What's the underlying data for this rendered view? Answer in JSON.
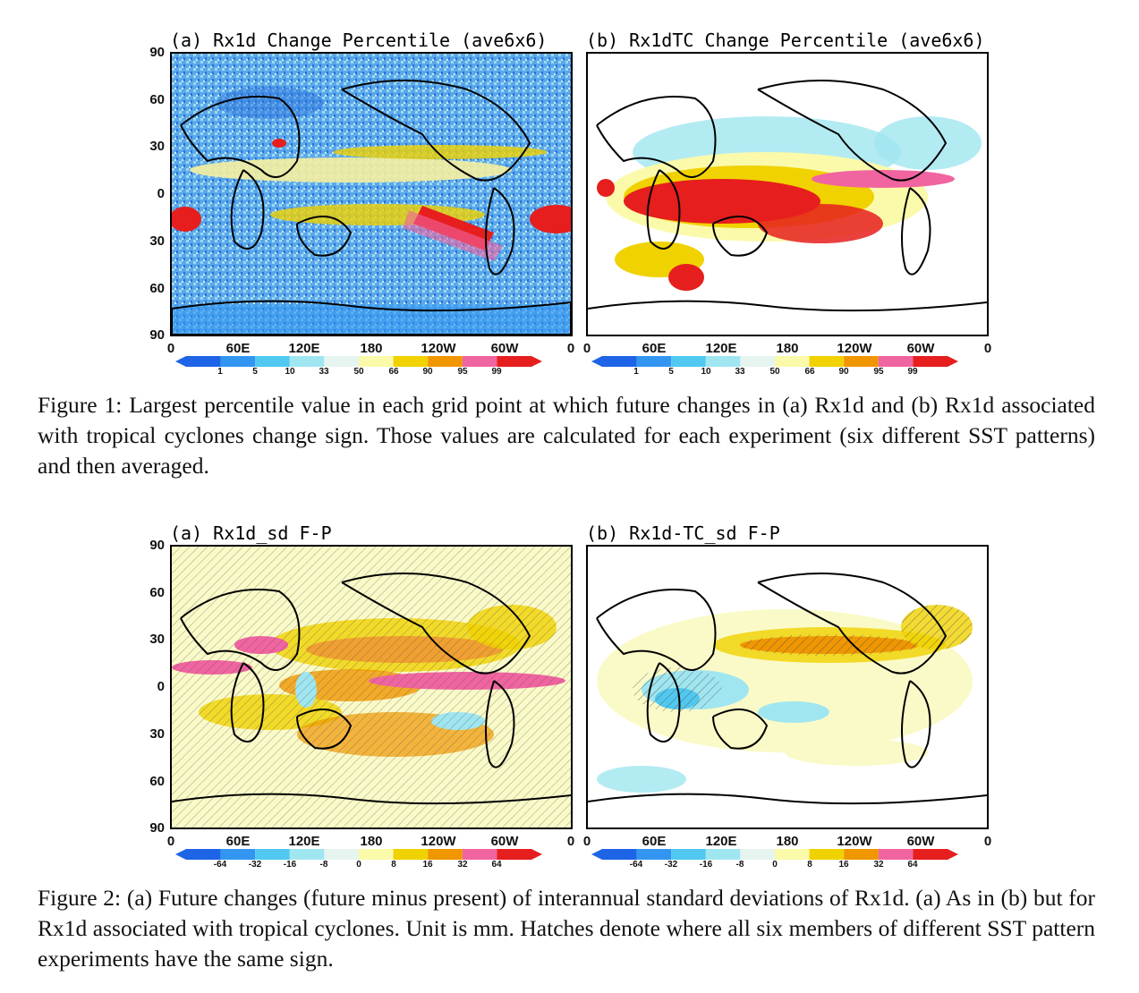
{
  "figure1": {
    "panel_a_title": "(a) Rx1d Change Percentile (ave6x6)",
    "panel_b_title": "(b) Rx1dTC Change Percentile (ave6x6)",
    "colorbar_labels": [
      "1",
      "5",
      "10",
      "33",
      "50",
      "66",
      "90",
      "95",
      "99"
    ],
    "caption": "Figure 1: Largest percentile value in each grid point at which future changes in (a) Rx1d and (b) Rx1d associated with tropical cyclones change sign. Those values are calculated for each experiment (six different SST patterns) and then averaged."
  },
  "figure2": {
    "panel_a_title": "(a) Rx1d_sd F-P",
    "panel_b_title": "(b) Rx1d-TC_sd F-P",
    "colorbar_labels": [
      "-64",
      "-32",
      "-16",
      "-8",
      "0",
      "8",
      "16",
      "32",
      "64"
    ],
    "caption": "Figure 2: (a) Future changes (future minus present) of interannual standard deviations of Rx1d. (a) As in (b) but for Rx1d associated with tropical cyclones. Unit is mm. Hatches denote where all six members of different SST pattern experiments have the same sign."
  },
  "axes": {
    "lat_ticks": [
      "90",
      "60",
      "30",
      "0",
      "30",
      "60",
      "90"
    ],
    "lon_ticks_a": [
      "0",
      "60E",
      "120E",
      "180",
      "120W",
      "60W",
      "0"
    ],
    "lon_ticks_b": [
      "0",
      "60E",
      "120E",
      "180",
      "120W",
      "60W",
      "0"
    ]
  },
  "colors": {
    "percentile_scale": [
      "#1e64e6",
      "#3296f0",
      "#50c8f0",
      "#a0e6f0",
      "#e6f5f0",
      "#fafaaa",
      "#f0d200",
      "#f09600",
      "#f064a0",
      "#e61e1e"
    ],
    "diff_scale": [
      "#1e64e6",
      "#3296f0",
      "#50c8f0",
      "#a0e6f0",
      "#e6f5f0",
      "#fafaaa",
      "#f0d200",
      "#f09600",
      "#f064a0",
      "#e61e1e"
    ]
  }
}
